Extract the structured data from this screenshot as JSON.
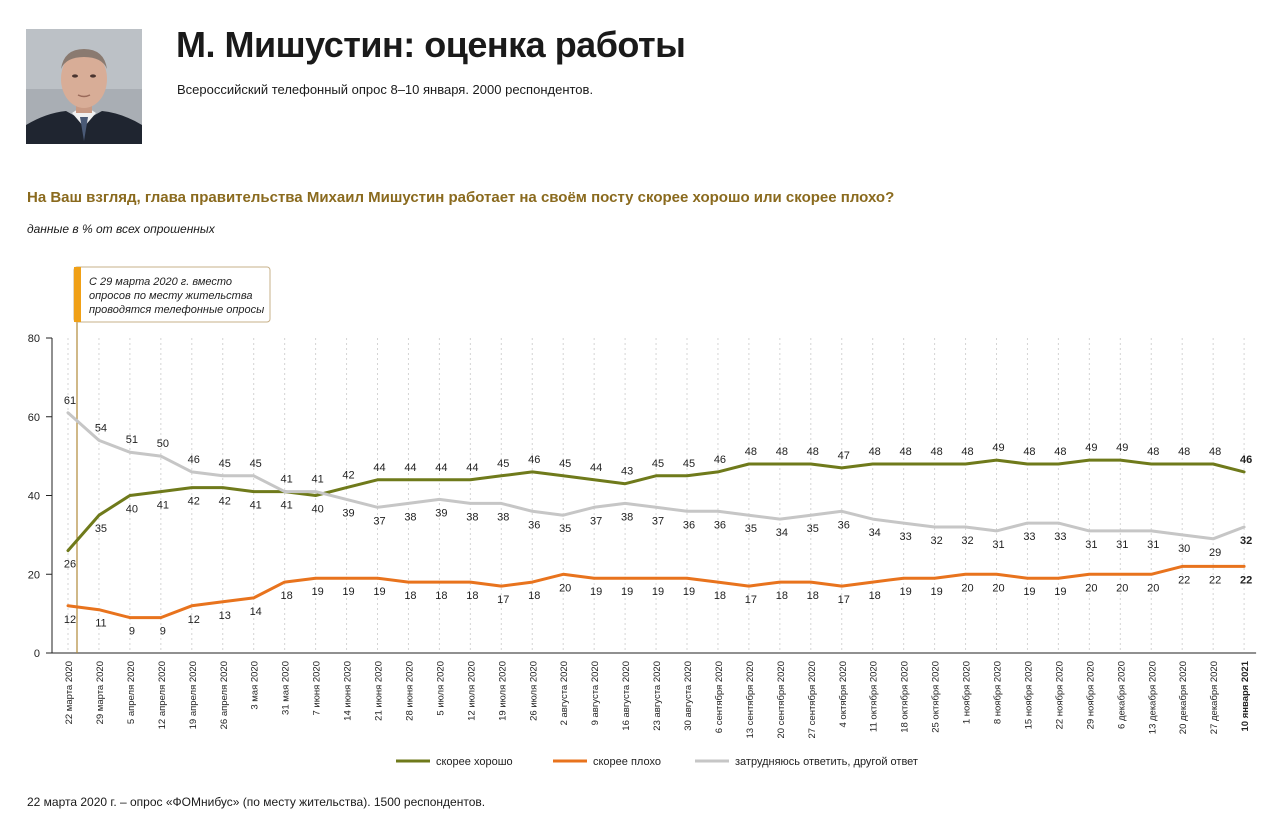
{
  "header": {
    "title": "М. Мишустин: оценка работы",
    "subtitle": "Всероссийский телефонный опрос 8–10 января. 2000 респондентов."
  },
  "question": "На Ваш взгляд, глава правительства Михаил Мишустин работает на своём посту скорее хорошо или скорее плохо?",
  "units_note": "данные в % от всех опрошенных",
  "footnote": "22 марта 2020 г. – опрос «ФОМнибус» (по месту жительства). 1500 респондентов.",
  "chart_data": {
    "type": "line",
    "title": "",
    "xlabel": "",
    "ylabel": "",
    "ylim": [
      0,
      80
    ],
    "yticks": [
      0,
      20,
      40,
      60,
      80
    ],
    "grid": true,
    "legend_position": "bottom",
    "annotation": {
      "lines": [
        "С 29 марта 2020 г. вместо",
        "опросов по месту жительства",
        "проводятся телефонные опросы"
      ],
      "at_category": 0
    },
    "categories": [
      "22 марта 2020",
      "29 марта 2020",
      "5 апреля 2020",
      "12 апреля 2020",
      "19 апреля 2020",
      "26 апреля 2020",
      "3 мая 2020",
      "31 мая 2020",
      "7 июня 2020",
      "14 июня 2020",
      "21 июня 2020",
      "28 июня 2020",
      "5 июля 2020",
      "12 июля 2020",
      "19 июля 2020",
      "26 июля 2020",
      "2 августа 2020",
      "9 августа 2020",
      "16 августа 2020",
      "23 августа 2020",
      "30 августа 2020",
      "6 сентября 2020",
      "13 сентября 2020",
      "20 сентября 2020",
      "27 сентября 2020",
      "4 октября 2020",
      "11 октября 2020",
      "18 октября 2020",
      "25 октября 2020",
      "1 ноября 2020",
      "8 ноября 2020",
      "15 ноября 2020",
      "22 ноября 2020",
      "29 ноября 2020",
      "6 декабря 2020",
      "13 декабря 2020",
      "20 декабря 2020",
      "27 декабря 2020",
      "10 января 2021"
    ],
    "series": [
      {
        "name": "скорее хорошо",
        "color": "#6f7a1b",
        "values": [
          26,
          35,
          40,
          41,
          42,
          42,
          41,
          41,
          40,
          42,
          44,
          44,
          44,
          44,
          45,
          46,
          45,
          44,
          43,
          45,
          45,
          46,
          48,
          48,
          48,
          47,
          48,
          48,
          48,
          48,
          49,
          48,
          48,
          49,
          49,
          48,
          48,
          48,
          46
        ],
        "label_pos": [
          "below",
          "below",
          "below",
          "below",
          "below",
          "below",
          "below",
          "below",
          "below",
          "above",
          "above",
          "above",
          "above",
          "above",
          "above",
          "above",
          "above",
          "above",
          "above",
          "above",
          "above",
          "above",
          "above",
          "above",
          "above",
          "above",
          "above",
          "above",
          "above",
          "above",
          "above",
          "above",
          "above",
          "above",
          "above",
          "above",
          "above",
          "above",
          "above"
        ]
      },
      {
        "name": "скорее плохо",
        "color": "#e8731d",
        "values": [
          12,
          11,
          9,
          9,
          12,
          13,
          14,
          18,
          19,
          19,
          19,
          18,
          18,
          18,
          17,
          18,
          20,
          19,
          19,
          19,
          19,
          18,
          17,
          18,
          18,
          17,
          18,
          19,
          19,
          20,
          20,
          19,
          19,
          20,
          20,
          20,
          22,
          22,
          22
        ],
        "label_pos": [
          "below",
          "below",
          "below",
          "below",
          "below",
          "below",
          "below",
          "below",
          "below",
          "below",
          "below",
          "below",
          "below",
          "below",
          "below",
          "below",
          "below",
          "below",
          "below",
          "below",
          "below",
          "below",
          "below",
          "below",
          "below",
          "below",
          "below",
          "below",
          "below",
          "below",
          "below",
          "below",
          "below",
          "below",
          "below",
          "below",
          "below",
          "below",
          "below"
        ]
      },
      {
        "name": "затрудняюсь ответить, другой ответ",
        "color": "#c6c6c6",
        "values": [
          61,
          54,
          51,
          50,
          46,
          45,
          45,
          41,
          41,
          39,
          37,
          38,
          39,
          38,
          38,
          36,
          35,
          37,
          38,
          37,
          36,
          36,
          35,
          34,
          35,
          36,
          34,
          33,
          32,
          32,
          31,
          33,
          33,
          31,
          31,
          31,
          30,
          29,
          32
        ],
        "label_pos": [
          "above",
          "above",
          "above",
          "above",
          "above",
          "above",
          "above",
          "above",
          "above",
          "below",
          "below",
          "below",
          "below",
          "below",
          "below",
          "below",
          "below",
          "below",
          "below",
          "below",
          "below",
          "below",
          "below",
          "below",
          "below",
          "below",
          "below",
          "below",
          "below",
          "below",
          "below",
          "below",
          "below",
          "below",
          "below",
          "below",
          "below",
          "below",
          "below"
        ]
      }
    ]
  }
}
